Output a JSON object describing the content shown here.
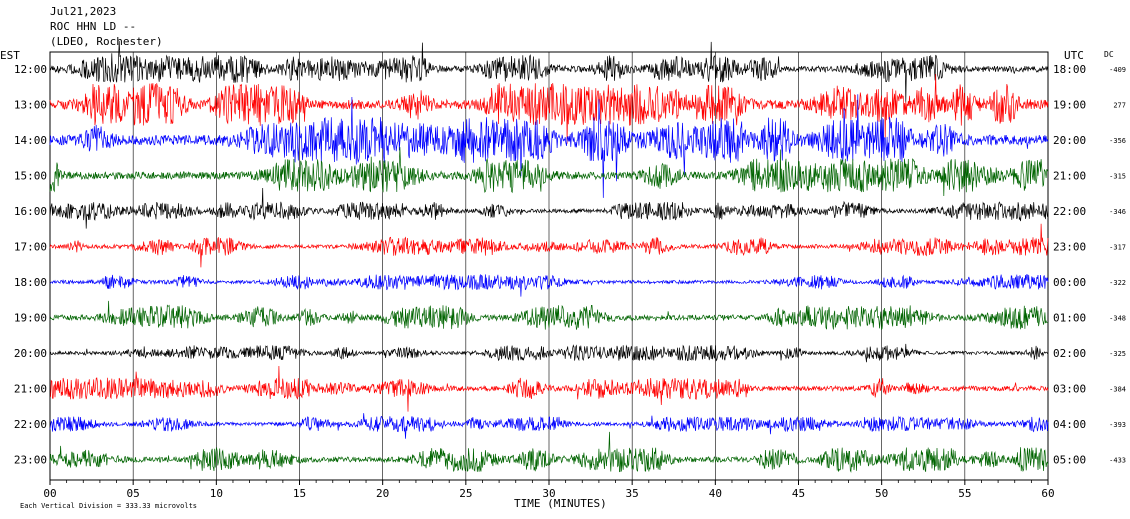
{
  "header": {
    "line1": "Jul21,2023",
    "line2": "ROC HHN LD --",
    "line3": "(LDEO, Rochester)"
  },
  "left_axis_title": "EST",
  "right_axis_title": "UTC",
  "dc_title": "DC",
  "x_axis_title": "TIME (MINUTES)",
  "scale_note": "Each Vertical Division =  333.33 microvolts",
  "colors": {
    "black": "#000000",
    "red": "#ff0000",
    "blue": "#0000ff",
    "green": "#006400"
  },
  "chart_data": {
    "type": "line",
    "xlim": [
      0,
      60
    ],
    "x_ticks": [
      "00",
      "05",
      "10",
      "15",
      "20",
      "25",
      "30",
      "35",
      "40",
      "45",
      "50",
      "55",
      "60"
    ],
    "grid": true,
    "traces": [
      {
        "est": "12:00",
        "utc": "18:00",
        "dc": "-409",
        "color": "#000000",
        "amplitude": 0.9
      },
      {
        "est": "13:00",
        "utc": "19:00",
        "dc": "277",
        "color": "#ff0000",
        "amplitude": 1.4
      },
      {
        "est": "14:00",
        "utc": "20:00",
        "dc": "-356",
        "color": "#0000ff",
        "amplitude": 1.5
      },
      {
        "est": "15:00",
        "utc": "21:00",
        "dc": "-315",
        "color": "#006400",
        "amplitude": 1.1
      },
      {
        "est": "16:00",
        "utc": "22:00",
        "dc": "-346",
        "color": "#000000",
        "amplitude": 0.6
      },
      {
        "est": "17:00",
        "utc": "23:00",
        "dc": "-317",
        "color": "#ff0000",
        "amplitude": 0.6
      },
      {
        "est": "18:00",
        "utc": "00:00",
        "dc": "-322",
        "color": "#0000ff",
        "amplitude": 0.5
      },
      {
        "est": "19:00",
        "utc": "01:00",
        "dc": "-348",
        "color": "#006400",
        "amplitude": 0.8
      },
      {
        "est": "20:00",
        "utc": "02:00",
        "dc": "-325",
        "color": "#000000",
        "amplitude": 0.5
      },
      {
        "est": "21:00",
        "utc": "03:00",
        "dc": "-384",
        "color": "#ff0000",
        "amplitude": 0.7
      },
      {
        "est": "22:00",
        "utc": "04:00",
        "dc": "-393",
        "color": "#0000ff",
        "amplitude": 0.5
      },
      {
        "est": "23:00",
        "utc": "05:00",
        "dc": "-433",
        "color": "#006400",
        "amplitude": 0.8
      }
    ]
  }
}
